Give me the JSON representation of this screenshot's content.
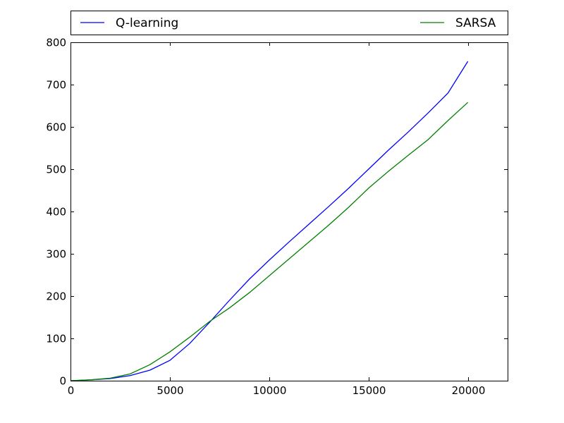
{
  "chart_data": {
    "type": "line",
    "title": "",
    "xlabel": "",
    "ylabel": "",
    "xlim": [
      0,
      22000
    ],
    "ylim": [
      0,
      800
    ],
    "x_ticks": [
      0,
      5000,
      10000,
      15000,
      20000
    ],
    "y_ticks": [
      0,
      100,
      200,
      300,
      400,
      500,
      600,
      700,
      800
    ],
    "x_tick_labels": [
      "0",
      "5000",
      "10000",
      "15000",
      "20000"
    ],
    "y_tick_labels": [
      "0",
      "100",
      "200",
      "300",
      "400",
      "500",
      "600",
      "700",
      "800"
    ],
    "grid": false,
    "legend_position": "top, outside plot, spanning width",
    "series": [
      {
        "name": "Q-learning",
        "color": "#0000ff",
        "x": [
          0,
          1000,
          2000,
          3000,
          4000,
          5000,
          6000,
          7000,
          8000,
          9000,
          10000,
          11000,
          12000,
          13000,
          14000,
          15000,
          16000,
          17000,
          18000,
          19000,
          20000
        ],
        "y": [
          0,
          2,
          5,
          12,
          25,
          48,
          88,
          138,
          190,
          240,
          285,
          328,
          370,
          412,
          455,
          500,
          545,
          588,
          633,
          680,
          755
        ]
      },
      {
        "name": "SARSA",
        "color": "#008000",
        "x": [
          0,
          1000,
          2000,
          3000,
          4000,
          5000,
          6000,
          7000,
          8000,
          9000,
          10000,
          11000,
          12000,
          13000,
          14000,
          15000,
          16000,
          17000,
          18000,
          19000,
          20000
        ],
        "y": [
          0,
          2,
          6,
          16,
          38,
          68,
          103,
          140,
          172,
          208,
          248,
          288,
          328,
          368,
          410,
          455,
          495,
          533,
          570,
          615,
          658
        ]
      }
    ]
  }
}
